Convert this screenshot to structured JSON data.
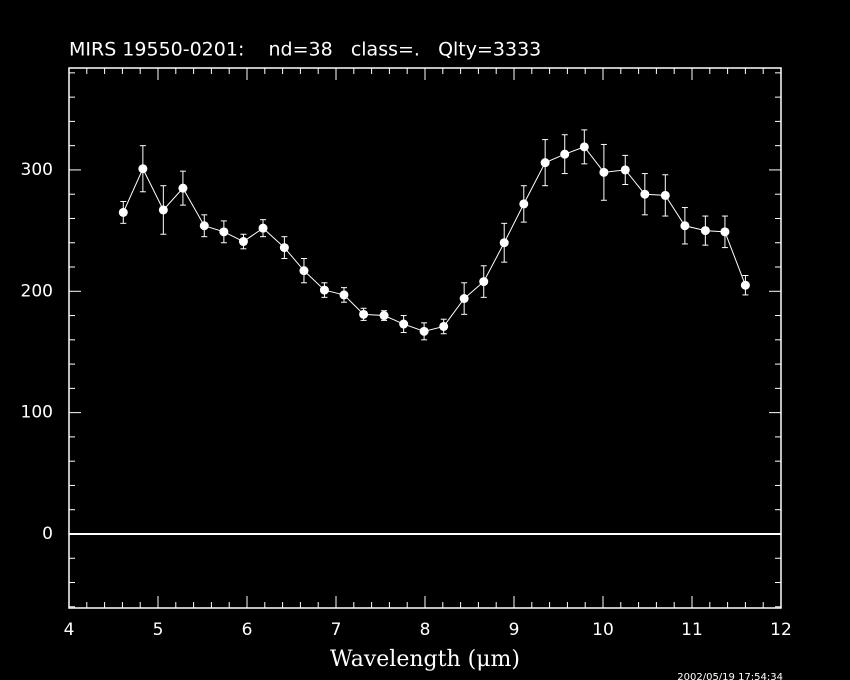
{
  "chart_data": {
    "type": "scatter",
    "title": "MIRS 19550-0201:    nd=38   class=.   Qlty=3333",
    "x_label": "Wavelength (μm)",
    "timestamp": "2002/05/19 17:54:34",
    "x": [
      4.61,
      4.83,
      5.06,
      5.28,
      5.52,
      5.74,
      5.96,
      6.18,
      6.42,
      6.64,
      6.87,
      7.09,
      7.31,
      7.54,
      7.76,
      7.99,
      8.21,
      8.44,
      8.66,
      8.89,
      9.11,
      9.35,
      9.57,
      9.79,
      10.01,
      10.25,
      10.47,
      10.7,
      10.92,
      11.15,
      11.37,
      11.6
    ],
    "series": [
      {
        "color": "#ffffff",
        "values": [
          265,
          301,
          267,
          285,
          254,
          249,
          241,
          252,
          236,
          217,
          201,
          197,
          181,
          180,
          173,
          167,
          171,
          194,
          208,
          240,
          272,
          306,
          313,
          319,
          298,
          300,
          280,
          279,
          254,
          250,
          249,
          205
        ],
        "errors": [
          9,
          19,
          20,
          14,
          9,
          9,
          6,
          7,
          9,
          10,
          6,
          6,
          5,
          4,
          7,
          7,
          6,
          13,
          13,
          16,
          15,
          19,
          16,
          14,
          23,
          12,
          17,
          17,
          15,
          12,
          13,
          8
        ]
      }
    ],
    "xlim": [
      4,
      12
    ],
    "xticks": [
      4,
      5,
      6,
      7,
      8,
      9,
      10,
      11,
      12
    ],
    "ylim": [
      -61,
      384
    ],
    "yticks": [
      0,
      100,
      200,
      300
    ],
    "zero_line": true
  }
}
